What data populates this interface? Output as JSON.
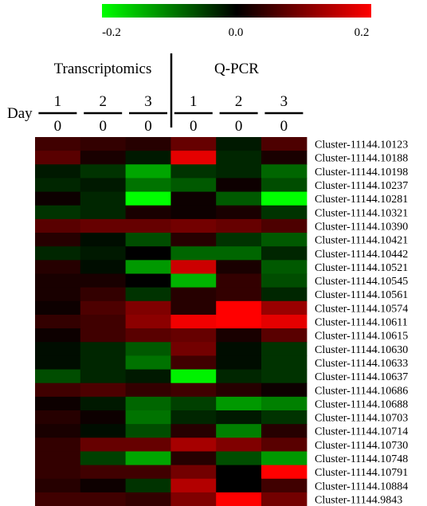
{
  "chart_data": {
    "type": "heatmap",
    "color_scale": {
      "min": -0.2,
      "mid": 0.0,
      "max": 0.2,
      "min_color": "#00ff00",
      "mid_color": "#000000",
      "max_color": "#ff0000",
      "tick_labels": [
        "-0.2",
        "0.0",
        "0.2"
      ]
    },
    "group_labels": [
      "Transcriptomics",
      "Q-PCR"
    ],
    "day_label": "Day",
    "columns": [
      {
        "numerator": "1",
        "denominator": "0"
      },
      {
        "numerator": "2",
        "denominator": "0"
      },
      {
        "numerator": "3",
        "denominator": "0"
      },
      {
        "numerator": "1",
        "denominator": "0"
      },
      {
        "numerator": "2",
        "denominator": "0"
      },
      {
        "numerator": "3",
        "denominator": "0"
      }
    ],
    "rows": [
      "Cluster-11144.10123",
      "Cluster-11144.10188",
      "Cluster-11144.10198",
      "Cluster-11144.10237",
      "Cluster-11144.10281",
      "Cluster-11144.10321",
      "Cluster-11144.10390",
      "Cluster-11144.10421",
      "Cluster-11144.10442",
      "Cluster-11144.10521",
      "Cluster-11144.10545",
      "Cluster-11144.10561",
      "Cluster-11144.10574",
      "Cluster-11144.10611",
      "Cluster-11144.10615",
      "Cluster-11144.10630",
      "Cluster-11144.10633",
      "Cluster-11144.10637",
      "Cluster-11144.10686",
      "Cluster-11144.10688",
      "Cluster-11144.10703",
      "Cluster-11144.10714",
      "Cluster-11144.10730",
      "Cluster-11144.10748",
      "Cluster-11144.10791",
      "Cluster-11144.10884",
      "Cluster-11144.9843"
    ],
    "values": [
      [
        0.05,
        0.04,
        0.03,
        0.08,
        -0.02,
        0.06
      ],
      [
        0.07,
        0.02,
        -0.02,
        0.18,
        -0.03,
        0.02
      ],
      [
        -0.02,
        -0.04,
        -0.13,
        -0.04,
        -0.03,
        -0.08
      ],
      [
        -0.03,
        -0.02,
        -0.09,
        -0.07,
        0.01,
        -0.06
      ],
      [
        0.01,
        -0.03,
        -0.2,
        0.01,
        -0.07,
        -0.2
      ],
      [
        -0.04,
        -0.03,
        0.02,
        0.01,
        0.02,
        -0.04
      ],
      [
        0.07,
        0.08,
        0.08,
        0.09,
        0.08,
        0.06
      ],
      [
        0.03,
        -0.01,
        -0.06,
        0.03,
        -0.04,
        -0.07
      ],
      [
        -0.03,
        -0.02,
        0.0,
        -0.08,
        -0.08,
        -0.03
      ],
      [
        0.03,
        -0.01,
        -0.12,
        0.16,
        0.02,
        -0.07
      ],
      [
        0.02,
        0.02,
        0.0,
        -0.14,
        0.04,
        -0.06
      ],
      [
        0.02,
        0.04,
        -0.04,
        0.03,
        0.04,
        -0.03
      ],
      [
        0.01,
        0.06,
        0.1,
        0.03,
        0.2,
        0.12
      ],
      [
        0.04,
        0.05,
        0.11,
        0.19,
        0.2,
        0.18
      ],
      [
        0.01,
        0.05,
        0.07,
        0.08,
        0.02,
        0.07
      ],
      [
        -0.01,
        -0.03,
        -0.07,
        0.09,
        -0.01,
        -0.04
      ],
      [
        -0.01,
        -0.03,
        -0.09,
        0.05,
        -0.01,
        -0.04
      ],
      [
        -0.06,
        -0.03,
        -0.02,
        -0.19,
        -0.03,
        -0.04
      ],
      [
        0.05,
        0.06,
        0.04,
        0.05,
        0.03,
        0.01
      ],
      [
        0.01,
        -0.02,
        -0.08,
        -0.05,
        -0.12,
        -0.1
      ],
      [
        0.03,
        0.01,
        -0.09,
        -0.03,
        -0.02,
        -0.04
      ],
      [
        0.02,
        -0.01,
        -0.06,
        0.03,
        -0.1,
        0.03
      ],
      [
        0.04,
        0.08,
        0.08,
        0.13,
        0.1,
        0.07
      ],
      [
        0.04,
        -0.05,
        -0.13,
        0.03,
        -0.06,
        -0.12
      ],
      [
        0.04,
        0.05,
        0.05,
        0.09,
        0.0,
        0.2
      ],
      [
        0.03,
        0.01,
        -0.04,
        0.14,
        0.0,
        0.05
      ],
      [
        0.05,
        0.05,
        0.04,
        0.1,
        0.2,
        0.09
      ]
    ]
  }
}
